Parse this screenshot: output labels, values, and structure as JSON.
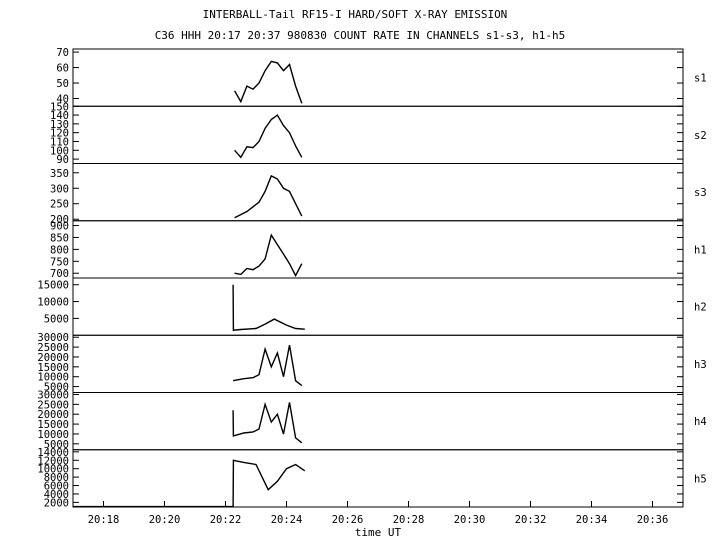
{
  "title": "INTERBALL-Tail RF15-I HARD/SOFT X-RAY EMISSION",
  "subtitle": "C36 HHH 20:17 20:37 980830  COUNT RATE IN CHANNELS s1-s3, h1-h5",
  "chart_data": {
    "type": "line",
    "xlabel": "time UT",
    "xlim": [
      "20:17",
      "20:37"
    ],
    "x_ticks": [
      "20:18",
      "20:20",
      "20:22",
      "20:24",
      "20:26",
      "20:28",
      "20:30",
      "20:32",
      "20:34",
      "20:36"
    ],
    "panels": [
      {
        "name": "s1",
        "ylim": [
          35,
          72
        ],
        "yticks": [
          "70",
          "60",
          "50",
          "40"
        ],
        "series": {
          "x": [
            "20:22.3",
            "20:22.5",
            "20:22.7",
            "20:22.9",
            "20:23.1",
            "20:23.3",
            "20:23.5",
            "20:23.7",
            "20:23.9",
            "20:24.1",
            "20:24.3",
            "20:24.5"
          ],
          "values": [
            45,
            38,
            48,
            46,
            50,
            58,
            64,
            63,
            58,
            62,
            48,
            37
          ]
        }
      },
      {
        "name": "s2",
        "ylim": [
          85,
          150
        ],
        "yticks": [
          "150",
          "140",
          "130",
          "120",
          "110",
          "100",
          "90"
        ],
        "series": {
          "x": [
            "20:22.3",
            "20:22.5",
            "20:22.7",
            "20:22.9",
            "20:23.1",
            "20:23.3",
            "20:23.5",
            "20:23.7",
            "20:23.9",
            "20:24.1",
            "20:24.3",
            "20:24.5"
          ],
          "values": [
            100,
            92,
            104,
            103,
            110,
            125,
            135,
            140,
            128,
            120,
            105,
            92
          ]
        }
      },
      {
        "name": "s3",
        "ylim": [
          195,
          380
        ],
        "yticks": [
          "350",
          "300",
          "250",
          "200"
        ],
        "series": {
          "x": [
            "20:22.3",
            "20:22.5",
            "20:22.7",
            "20:22.9",
            "20:23.1",
            "20:23.3",
            "20:23.5",
            "20:23.7",
            "20:23.9",
            "20:24.1",
            "20:24.3",
            "20:24.5"
          ],
          "values": [
            205,
            215,
            225,
            240,
            255,
            290,
            340,
            330,
            300,
            290,
            250,
            210
          ]
        }
      },
      {
        "name": "h1",
        "ylim": [
          680,
          920
        ],
        "yticks": [
          "900",
          "850",
          "800",
          "750",
          "700"
        ],
        "series": {
          "x": [
            "20:22.3",
            "20:22.5",
            "20:22.7",
            "20:22.9",
            "20:23.1",
            "20:23.3",
            "20:23.5",
            "20:23.7",
            "20:23.9",
            "20:24.1",
            "20:24.3",
            "20:24.5"
          ],
          "values": [
            700,
            695,
            720,
            715,
            730,
            760,
            860,
            820,
            780,
            740,
            690,
            740
          ]
        }
      },
      {
        "name": "h2",
        "ylim": [
          0,
          17000
        ],
        "yticks": [
          "15000",
          "10000",
          "5000"
        ],
        "series": {
          "x": [
            "20:22.25",
            "20:22.26",
            "20:22.5",
            "20:23.0",
            "20:23.3",
            "20:23.6",
            "20:24.0",
            "20:24.3",
            "20:24.6"
          ],
          "values": [
            15000,
            1500,
            1700,
            2000,
            3300,
            4800,
            3000,
            2000,
            1800
          ]
        }
      },
      {
        "name": "h3",
        "ylim": [
          2000,
          31000
        ],
        "yticks": [
          "30000",
          "25000",
          "20000",
          "15000",
          "10000",
          "5000"
        ],
        "series": {
          "x": [
            "20:22.25",
            "20:22.6",
            "20:22.9",
            "20:23.1",
            "20:23.3",
            "20:23.5",
            "20:23.7",
            "20:23.9",
            "20:24.1",
            "20:24.3",
            "20:24.5"
          ],
          "values": [
            8000,
            9000,
            9500,
            11000,
            24000,
            15000,
            22000,
            10000,
            26000,
            8000,
            5500
          ]
        }
      },
      {
        "name": "h4",
        "ylim": [
          2000,
          31000
        ],
        "yticks": [
          "30000",
          "25000",
          "20000",
          "15000",
          "10000",
          "5000"
        ],
        "series": {
          "x": [
            "20:22.25",
            "20:22.26",
            "20:22.6",
            "20:22.9",
            "20:23.1",
            "20:23.3",
            "20:23.5",
            "20:23.7",
            "20:23.9",
            "20:24.1",
            "20:24.3",
            "20:24.5"
          ],
          "values": [
            22000,
            9000,
            10500,
            11000,
            12500,
            25000,
            16000,
            20000,
            10000,
            26000,
            8000,
            5500
          ]
        }
      },
      {
        "name": "h5",
        "ylim": [
          900,
          14500
        ],
        "yticks": [
          "14000",
          "12000",
          "10000",
          "8000",
          "6000",
          "4000",
          "2000"
        ],
        "series": {
          "x": [
            "20:17",
            "20:22.25",
            "20:22.26",
            "20:22.6",
            "20:23.0",
            "20:23.2",
            "20:23.4",
            "20:23.7",
            "20:24.0",
            "20:24.3",
            "20:24.6"
          ],
          "values": [
            1000,
            1000,
            12000,
            11500,
            11000,
            8000,
            5000,
            7000,
            10000,
            11000,
            9500
          ]
        }
      }
    ]
  }
}
